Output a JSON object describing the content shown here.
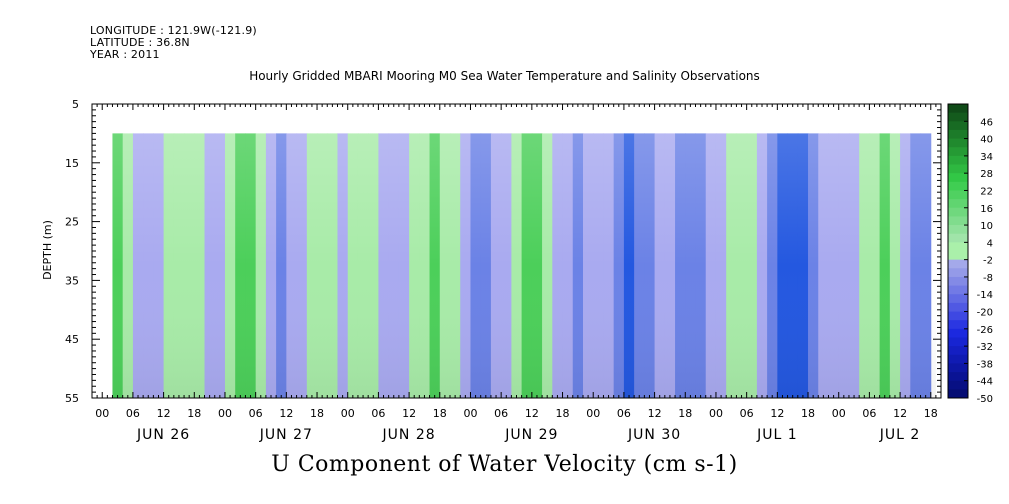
{
  "header": {
    "longitude": "LONGITUDE : 121.9W(-121.9)",
    "latitude": "LATITUDE : 36.8N",
    "year": "YEAR : 2011"
  },
  "title": "Hourly Gridded MBARI Mooring M0 Sea Water Temperature and Salinity Observations",
  "subtitle": "U Component of Water Velocity (cm s-1)",
  "chart_data": {
    "type": "heatmap",
    "title": "Hourly Gridded MBARI Mooring M0 Sea Water Temperature and Salinity Observations",
    "subtitle": "U Component of Water Velocity (cm s-1)",
    "ylabel": "DEPTH (m)",
    "ylim": [
      55,
      5
    ],
    "y_ticks": [
      "5",
      "15",
      "25",
      "35",
      "45",
      "55"
    ],
    "data_depth_range": [
      10,
      55
    ],
    "x_hour_ticks": [
      "00",
      "06",
      "12",
      "18",
      "00",
      "06",
      "12",
      "18",
      "00",
      "06",
      "12",
      "18",
      "00",
      "06",
      "12",
      "18",
      "00",
      "06",
      "12",
      "18",
      "00",
      "06",
      "12",
      "18",
      "00",
      "06",
      "12",
      "18"
    ],
    "x_day_labels": [
      "JUN 26",
      "JUN 27",
      "JUN 28",
      "JUN 29",
      "JUN 30",
      "JUL  1",
      "JUL  2"
    ],
    "xlim_hours": [
      -2,
      164
    ],
    "data_time_range_hours": [
      3,
      163
    ],
    "colorbar": {
      "labels": [
        "46",
        "40",
        "34",
        "28",
        "22",
        "16",
        "10",
        "4",
        "-2",
        "-8",
        "-14",
        "-20",
        "-26",
        "-32",
        "-38",
        "-44",
        "-50"
      ],
      "min": -50,
      "max": 52,
      "step": 3
    },
    "columns": [
      {
        "t": 3,
        "u": 8
      },
      {
        "t": 5,
        "u": 4
      },
      {
        "t": 7,
        "u": -4
      },
      {
        "t": 9,
        "u": -6
      },
      {
        "t": 11,
        "u": -3
      },
      {
        "t": 13,
        "u": 3
      },
      {
        "t": 15,
        "u": 6
      },
      {
        "t": 17,
        "u": 5
      },
      {
        "t": 19,
        "u": 1
      },
      {
        "t": 21,
        "u": -2
      },
      {
        "t": 23,
        "u": -1
      },
      {
        "t": 25,
        "u": 3
      },
      {
        "t": 27,
        "u": 8
      },
      {
        "t": 29,
        "u": 10
      },
      {
        "t": 31,
        "u": 6
      },
      {
        "t": 33,
        "u": -6
      },
      {
        "t": 35,
        "u": -9
      },
      {
        "t": 37,
        "u": -7
      },
      {
        "t": 39,
        "u": -3
      },
      {
        "t": 41,
        "u": 2
      },
      {
        "t": 43,
        "u": 4
      },
      {
        "t": 45,
        "u": 3
      },
      {
        "t": 47,
        "u": -1
      },
      {
        "t": 49,
        "u": 2
      },
      {
        "t": 51,
        "u": 4
      },
      {
        "t": 53,
        "u": 2
      },
      {
        "t": 55,
        "u": -4
      },
      {
        "t": 57,
        "u": -7
      },
      {
        "t": 59,
        "u": -5
      },
      {
        "t": 61,
        "u": 0
      },
      {
        "t": 63,
        "u": 3
      },
      {
        "t": 65,
        "u": 7
      },
      {
        "t": 67,
        "u": 6
      },
      {
        "t": 69,
        "u": 3
      },
      {
        "t": 71,
        "u": -5
      },
      {
        "t": 73,
        "u": -9
      },
      {
        "t": 75,
        "u": -10
      },
      {
        "t": 77,
        "u": -8
      },
      {
        "t": 79,
        "u": -3
      },
      {
        "t": 81,
        "u": 3
      },
      {
        "t": 83,
        "u": 7
      },
      {
        "t": 85,
        "u": 8
      },
      {
        "t": 87,
        "u": 4
      },
      {
        "t": 89,
        "u": -2
      },
      {
        "t": 91,
        "u": -6
      },
      {
        "t": 93,
        "u": -9
      },
      {
        "t": 95,
        "u": -8
      },
      {
        "t": 97,
        "u": -4
      },
      {
        "t": 99,
        "u": -2
      },
      {
        "t": 101,
        "u": -9
      },
      {
        "t": 103,
        "u": -14
      },
      {
        "t": 105,
        "u": -12
      },
      {
        "t": 107,
        "u": -10
      },
      {
        "t": 109,
        "u": -7
      },
      {
        "t": 111,
        "u": -8
      },
      {
        "t": 113,
        "u": -12
      },
      {
        "t": 115,
        "u": -13
      },
      {
        "t": 117,
        "u": -11
      },
      {
        "t": 119,
        "u": -6
      },
      {
        "t": 121,
        "u": -2
      },
      {
        "t": 123,
        "u": 2
      },
      {
        "t": 125,
        "u": 4
      },
      {
        "t": 127,
        "u": 0
      },
      {
        "t": 129,
        "u": -6
      },
      {
        "t": 131,
        "u": -11
      },
      {
        "t": 133,
        "u": -16
      },
      {
        "t": 135,
        "u": -18
      },
      {
        "t": 137,
        "u": -16
      },
      {
        "t": 139,
        "u": -13
      },
      {
        "t": 141,
        "u": -8
      },
      {
        "t": 143,
        "u": -3
      },
      {
        "t": 145,
        "u": -5
      },
      {
        "t": 147,
        "u": -4
      },
      {
        "t": 149,
        "u": 1
      },
      {
        "t": 151,
        "u": 4
      },
      {
        "t": 153,
        "u": 8
      },
      {
        "t": 155,
        "u": 3
      },
      {
        "t": 157,
        "u": -6
      },
      {
        "t": 159,
        "u": -10
      },
      {
        "t": 161,
        "u": -12
      }
    ],
    "colors": {
      "positive": "#4ccf5a",
      "near_zero_positive": "#a8eba8",
      "near_zero_negative": "#a9aaf0",
      "negative": "#6b82e6",
      "strong_negative": "#2458e0",
      "frame": "#000000"
    }
  }
}
